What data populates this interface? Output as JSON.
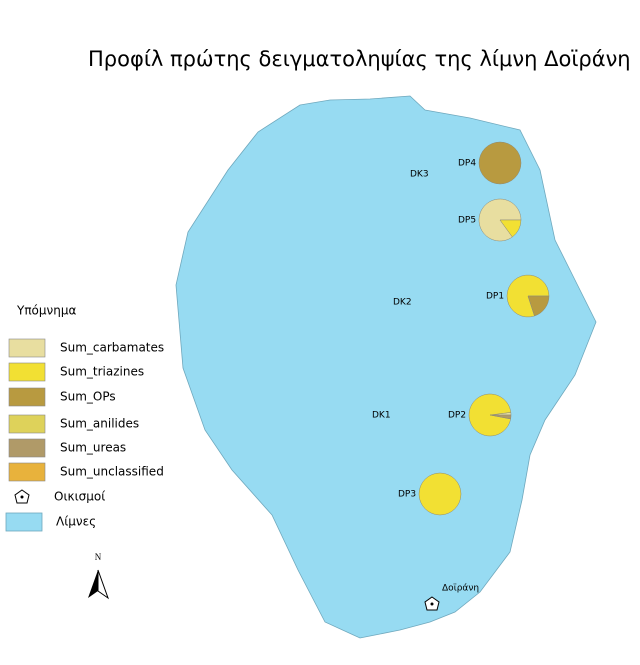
{
  "title": "Προφίλ πρώτης δειγματοληψίας της λίμνη Δοϊράνη",
  "legend": {
    "title": "Υπόμνημα",
    "categories": [
      {
        "label": "Sum_carbamates",
        "color": "#e8dea0"
      },
      {
        "label": "Sum_triazines",
        "color": "#f2e033"
      },
      {
        "label": "Sum_OPs",
        "color": "#b89a40"
      },
      {
        "label": "Sum_anilides",
        "color": "#ded25a"
      },
      {
        "label": "Sum_ureas",
        "color": "#b09a68"
      },
      {
        "label": "Sum_unclassified",
        "color": "#e8b23c"
      }
    ],
    "settlements": "Οικισμοί",
    "lakes": {
      "label": "Λίμνες",
      "color": "#97dbf2"
    }
  },
  "stations": [
    {
      "label": "DP4",
      "values": [
        0,
        0,
        100,
        0,
        0,
        0
      ]
    },
    {
      "label": "DP5",
      "values": [
        85,
        15,
        0,
        0,
        0,
        0
      ]
    },
    {
      "label": "DP1",
      "values": [
        0,
        80,
        20,
        0,
        0,
        0
      ]
    },
    {
      "label": "DP2",
      "values": [
        2,
        95,
        0,
        0,
        3,
        0
      ]
    },
    {
      "label": "DP3",
      "values": [
        0,
        100,
        0,
        0,
        0,
        0
      ]
    }
  ],
  "points": [
    "DK3",
    "DK2",
    "DK1"
  ],
  "town": "Δοϊράνη",
  "north": "N"
}
